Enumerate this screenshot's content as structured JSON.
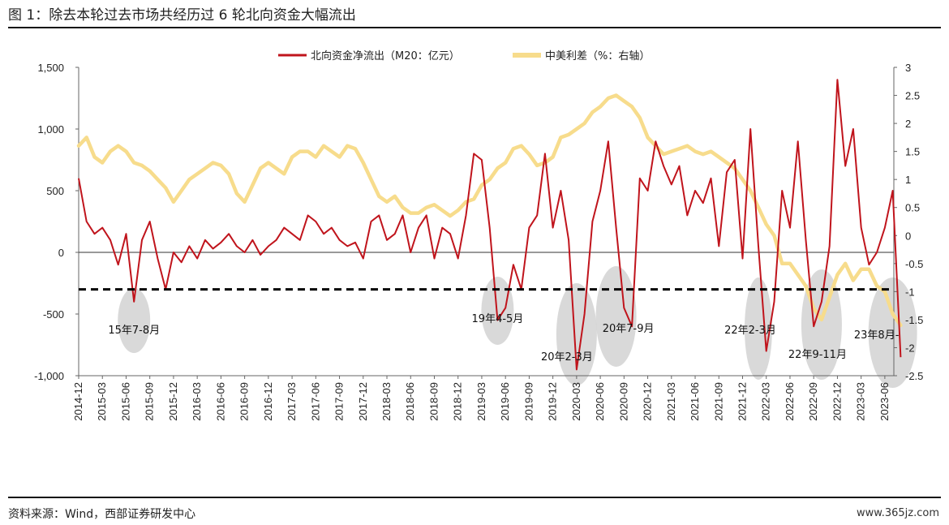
{
  "figure": {
    "title": "图 1：除去本轮过去市场共经历过 6 轮北向资金大幅流出",
    "source": "资料来源：Wind，西部证券研发中心",
    "watermark": "www.365jz.com"
  },
  "chart_data": {
    "type": "line",
    "legend_position": "top-center",
    "grid": false,
    "series": [
      {
        "name": "北向资金净流出（M20：亿元）",
        "axis": "left",
        "color": "#c0141c"
      },
      {
        "name": "中美利差（%：右轴）",
        "axis": "right",
        "color": "#f7dc8c"
      }
    ],
    "left_axis": {
      "min": -1000,
      "max": 1500,
      "ticks": [
        -1000,
        -500,
        0,
        500,
        1000,
        1500
      ],
      "tick_labels": [
        "-1,000",
        "-500",
        "0",
        "500",
        "1,000",
        "1,500"
      ]
    },
    "right_axis": {
      "min": -2.5,
      "max": 3,
      "ticks": [
        -2.5,
        -2,
        -1.5,
        -1,
        -0.5,
        0,
        0.5,
        1,
        1.5,
        2,
        2.5,
        3
      ],
      "tick_labels": [
        "-2.5",
        "-2",
        "-1.5",
        "-1",
        "-0.5",
        "0",
        "0.5",
        "1",
        "1.5",
        "2",
        "2.5",
        "3"
      ]
    },
    "x_tick_labels": [
      "2014-12",
      "2015-03",
      "2015-06",
      "2015-09",
      "2015-12",
      "2016-03",
      "2016-06",
      "2016-09",
      "2016-12",
      "2017-03",
      "2017-06",
      "2017-09",
      "2017-12",
      "2018-03",
      "2018-06",
      "2018-09",
      "2018-12",
      "2019-03",
      "2019-06",
      "2019-09",
      "2019-12",
      "2020-03",
      "2020-06",
      "2020-09",
      "2020-12",
      "2021-03",
      "2021-06",
      "2021-09",
      "2021-12",
      "2022-03",
      "2022-06",
      "2022-09",
      "2022-12",
      "2023-03",
      "2023-06"
    ],
    "reference_line": {
      "value": -300,
      "axis": "left",
      "style": "dashed",
      "color": "#000000"
    },
    "north_flow": {
      "x": [
        "2014-12",
        "2015-01",
        "2015-02",
        "2015-03",
        "2015-04",
        "2015-05",
        "2015-06",
        "2015-07",
        "2015-08",
        "2015-09",
        "2015-10",
        "2015-11",
        "2015-12",
        "2016-01",
        "2016-02",
        "2016-03",
        "2016-04",
        "2016-05",
        "2016-06",
        "2016-07",
        "2016-08",
        "2016-09",
        "2016-10",
        "2016-11",
        "2016-12",
        "2017-01",
        "2017-02",
        "2017-03",
        "2017-04",
        "2017-05",
        "2017-06",
        "2017-07",
        "2017-08",
        "2017-09",
        "2017-10",
        "2017-11",
        "2017-12",
        "2018-01",
        "2018-02",
        "2018-03",
        "2018-04",
        "2018-05",
        "2018-06",
        "2018-07",
        "2018-08",
        "2018-09",
        "2018-10",
        "2018-11",
        "2018-12",
        "2019-01",
        "2019-02",
        "2019-03",
        "2019-04",
        "2019-05",
        "2019-06",
        "2019-07",
        "2019-08",
        "2019-09",
        "2019-10",
        "2019-11",
        "2019-12",
        "2020-01",
        "2020-02",
        "2020-03",
        "2020-04",
        "2020-05",
        "2020-06",
        "2020-07",
        "2020-08",
        "2020-09",
        "2020-10",
        "2020-11",
        "2020-12",
        "2021-01",
        "2021-02",
        "2021-03",
        "2021-04",
        "2021-05",
        "2021-06",
        "2021-07",
        "2021-08",
        "2021-09",
        "2021-10",
        "2021-11",
        "2021-12",
        "2022-01",
        "2022-02",
        "2022-03",
        "2022-04",
        "2022-05",
        "2022-06",
        "2022-07",
        "2022-08",
        "2022-09",
        "2022-10",
        "2022-11",
        "2022-12",
        "2023-01",
        "2023-02",
        "2023-03",
        "2023-04",
        "2023-05",
        "2023-06",
        "2023-07",
        "2023-08"
      ],
      "values": [
        600,
        250,
        150,
        200,
        100,
        -100,
        150,
        -400,
        100,
        250,
        -50,
        -300,
        0,
        -80,
        50,
        -50,
        100,
        30,
        80,
        150,
        50,
        0,
        100,
        -20,
        50,
        100,
        200,
        150,
        100,
        300,
        250,
        150,
        200,
        100,
        50,
        80,
        -50,
        250,
        300,
        100,
        150,
        300,
        0,
        200,
        300,
        -50,
        200,
        150,
        -50,
        300,
        800,
        750,
        200,
        -550,
        -450,
        -100,
        -300,
        200,
        300,
        800,
        200,
        500,
        100,
        -950,
        -500,
        250,
        500,
        900,
        200,
        -450,
        -600,
        600,
        500,
        900,
        700,
        550,
        700,
        300,
        500,
        400,
        600,
        50,
        650,
        750,
        -50,
        1000,
        50,
        -800,
        -400,
        500,
        200,
        900,
        100,
        -600,
        -400,
        50,
        1400,
        700,
        1000,
        200,
        -100,
        0,
        200,
        500,
        -850
      ]
    },
    "spread": {
      "x": [
        "2014-12",
        "2015-01",
        "2015-02",
        "2015-03",
        "2015-04",
        "2015-05",
        "2015-06",
        "2015-07",
        "2015-08",
        "2015-09",
        "2015-10",
        "2015-11",
        "2015-12",
        "2016-01",
        "2016-02",
        "2016-03",
        "2016-04",
        "2016-05",
        "2016-06",
        "2016-07",
        "2016-08",
        "2016-09",
        "2016-10",
        "2016-11",
        "2016-12",
        "2017-01",
        "2017-02",
        "2017-03",
        "2017-04",
        "2017-05",
        "2017-06",
        "2017-07",
        "2017-08",
        "2017-09",
        "2017-10",
        "2017-11",
        "2017-12",
        "2018-01",
        "2018-02",
        "2018-03",
        "2018-04",
        "2018-05",
        "2018-06",
        "2018-07",
        "2018-08",
        "2018-09",
        "2018-10",
        "2018-11",
        "2018-12",
        "2019-01",
        "2019-02",
        "2019-03",
        "2019-04",
        "2019-05",
        "2019-06",
        "2019-07",
        "2019-08",
        "2019-09",
        "2019-10",
        "2019-11",
        "2019-12",
        "2020-01",
        "2020-02",
        "2020-03",
        "2020-04",
        "2020-05",
        "2020-06",
        "2020-07",
        "2020-08",
        "2020-09",
        "2020-10",
        "2020-11",
        "2020-12",
        "2021-01",
        "2021-02",
        "2021-03",
        "2021-04",
        "2021-05",
        "2021-06",
        "2021-07",
        "2021-08",
        "2021-09",
        "2021-10",
        "2021-11",
        "2021-12",
        "2022-01",
        "2022-02",
        "2022-03",
        "2022-04",
        "2022-05",
        "2022-06",
        "2022-07",
        "2022-08",
        "2022-09",
        "2022-10",
        "2022-11",
        "2022-12",
        "2023-01",
        "2023-02",
        "2023-03",
        "2023-04",
        "2023-05",
        "2023-06",
        "2023-07",
        "2023-08"
      ],
      "values": [
        1.6,
        1.75,
        1.4,
        1.3,
        1.5,
        1.6,
        1.5,
        1.3,
        1.25,
        1.15,
        1.0,
        0.85,
        0.6,
        0.8,
        1.0,
        1.1,
        1.2,
        1.3,
        1.25,
        1.1,
        0.75,
        0.6,
        0.9,
        1.2,
        1.3,
        1.2,
        1.1,
        1.4,
        1.5,
        1.5,
        1.4,
        1.6,
        1.5,
        1.4,
        1.6,
        1.55,
        1.3,
        1.0,
        0.7,
        0.6,
        0.7,
        0.5,
        0.4,
        0.4,
        0.5,
        0.55,
        0.45,
        0.35,
        0.45,
        0.6,
        0.65,
        0.9,
        1.0,
        1.2,
        1.3,
        1.55,
        1.6,
        1.45,
        1.25,
        1.3,
        1.4,
        1.75,
        1.8,
        1.9,
        2.0,
        2.2,
        2.3,
        2.45,
        2.5,
        2.4,
        2.3,
        2.1,
        1.75,
        1.6,
        1.45,
        1.5,
        1.55,
        1.6,
        1.5,
        1.45,
        1.5,
        1.4,
        1.3,
        1.2,
        1.0,
        0.8,
        0.5,
        0.2,
        0.0,
        -0.5,
        -0.5,
        -0.7,
        -0.9,
        -1.3,
        -1.5,
        -1.1,
        -0.7,
        -0.5,
        -0.8,
        -0.6,
        -0.6,
        -0.9,
        -1.0,
        -1.4,
        -1.6
      ]
    },
    "annotations": [
      {
        "label": "15年7-8月",
        "date": "2015-07"
      },
      {
        "label": "19年4-5月",
        "date": "2019-05"
      },
      {
        "label": "20年2-3月",
        "date": "2020-03"
      },
      {
        "label": "20年7-9月",
        "date": "2020-08"
      },
      {
        "label": "22年2-3月",
        "date": "2022-02"
      },
      {
        "label": "22年9-11月",
        "date": "2022-10"
      },
      {
        "label": "23年8月-",
        "date": "2023-07"
      }
    ]
  }
}
